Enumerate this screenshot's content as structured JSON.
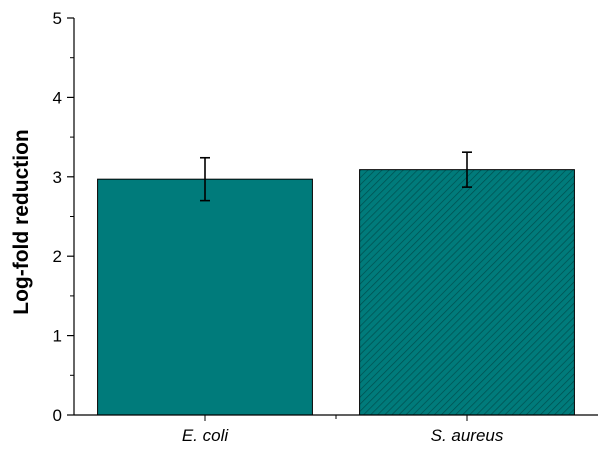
{
  "chart_data": {
    "type": "bar",
    "title": "",
    "xlabel": "",
    "ylabel": "Log-fold reduction",
    "categories": [
      "E. coli",
      "S. aureus"
    ],
    "values": [
      2.97,
      3.09
    ],
    "error": [
      0.27,
      0.22
    ],
    "ylim": [
      0,
      5
    ],
    "yticks": [
      "0",
      "1",
      "2",
      "3",
      "4",
      "5"
    ],
    "y_minor_step": 0.5,
    "grid": false,
    "legend": "none",
    "bar_color": "#007b7b",
    "bar_patterns": [
      "solid",
      "diagonal-hatch"
    ]
  }
}
